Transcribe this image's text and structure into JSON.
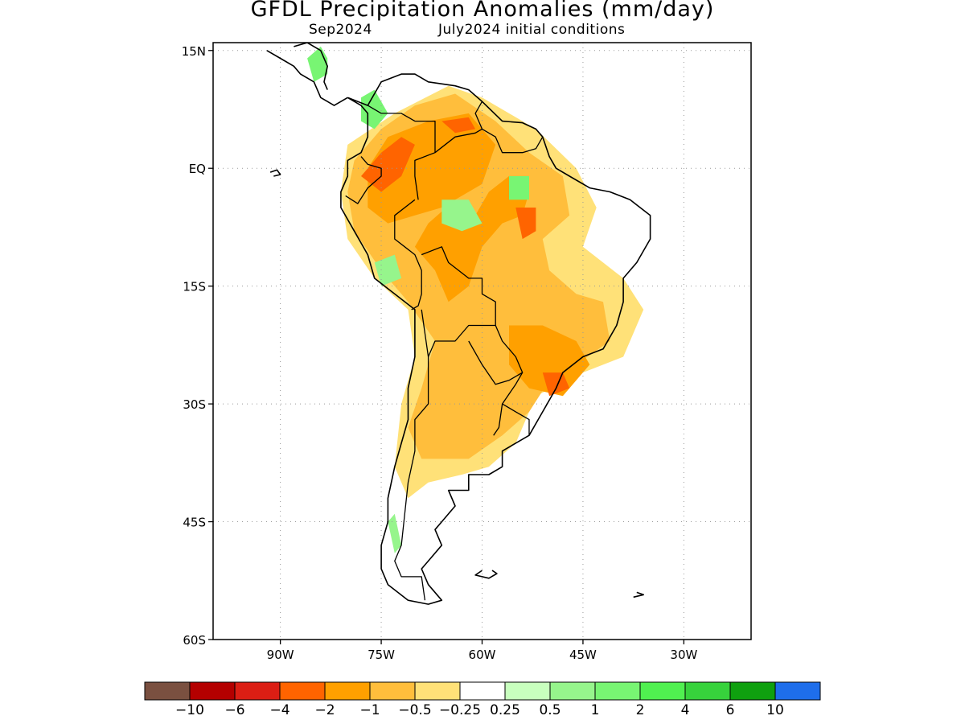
{
  "title": "GFDL Precipitation Anomalies (mm/day)",
  "subtitle_left": "Sep2024",
  "subtitle_right": "July2024 initial conditions",
  "lat_ticks": [
    {
      "label": "15N",
      "value": 15
    },
    {
      "label": "EQ",
      "value": 0
    },
    {
      "label": "15S",
      "value": -15
    },
    {
      "label": "30S",
      "value": -30
    },
    {
      "label": "45S",
      "value": -45
    },
    {
      "label": "60S",
      "value": -60
    }
  ],
  "lon_ticks": [
    {
      "label": "90W",
      "value": -90
    },
    {
      "label": "75W",
      "value": -75
    },
    {
      "label": "60W",
      "value": -60
    },
    {
      "label": "45W",
      "value": -45
    },
    {
      "label": "30W",
      "value": -30
    }
  ],
  "map_extent": {
    "lon_min": -100,
    "lon_max": -20,
    "lat_min": -60,
    "lat_max": 16
  },
  "colorbar": {
    "colors": [
      "#7a5040",
      "#b40000",
      "#dc1e14",
      "#ff6400",
      "#ffa000",
      "#ffbe3c",
      "#ffe178",
      "#ffffff",
      "#c8ffbe",
      "#96f58c",
      "#78f573",
      "#50f050",
      "#37d23c",
      "#0fa00f",
      "#1e6eeb"
    ],
    "labels": [
      "−10",
      "−6",
      "−4",
      "−2",
      "−1",
      "−0.5",
      "−0.25",
      "0.25",
      "0.5",
      "1",
      "2",
      "4",
      "6",
      "10"
    ]
  },
  "anomaly_regions": [
    {
      "level": "-0.25",
      "color": "#ffe178",
      "points": [
        [
          -80,
          3
        ],
        [
          -73,
          7
        ],
        [
          -65,
          10.5
        ],
        [
          -60,
          9
        ],
        [
          -52,
          5
        ],
        [
          -46,
          0
        ],
        [
          -43,
          -5
        ],
        [
          -45,
          -10
        ],
        [
          -39,
          -14
        ],
        [
          -36,
          -18
        ],
        [
          -39,
          -24
        ],
        [
          -45,
          -26
        ],
        [
          -52,
          -29
        ],
        [
          -55,
          -35
        ],
        [
          -59,
          -38
        ],
        [
          -63,
          -39
        ],
        [
          -68,
          -40
        ],
        [
          -71,
          -42
        ],
        [
          -73,
          -38
        ],
        [
          -72,
          -30
        ],
        [
          -70,
          -24
        ],
        [
          -71,
          -18
        ],
        [
          -76,
          -14
        ],
        [
          -80,
          -9
        ],
        [
          -81,
          -3
        ]
      ]
    },
    {
      "level": "-0.5",
      "color": "#ffbe3c",
      "points": [
        [
          -79,
          1
        ],
        [
          -75,
          5
        ],
        [
          -70,
          8
        ],
        [
          -64,
          9.5
        ],
        [
          -58,
          6
        ],
        [
          -53,
          2
        ],
        [
          -48,
          -1
        ],
        [
          -47,
          -6
        ],
        [
          -51,
          -9
        ],
        [
          -50,
          -13
        ],
        [
          -46,
          -16
        ],
        [
          -42,
          -17
        ],
        [
          -41,
          -22
        ],
        [
          -46,
          -25
        ],
        [
          -50,
          -27
        ],
        [
          -53,
          -31
        ],
        [
          -57,
          -34
        ],
        [
          -62,
          -37
        ],
        [
          -69,
          -37
        ],
        [
          -71,
          -33
        ],
        [
          -69,
          -28
        ],
        [
          -67,
          -22
        ],
        [
          -71,
          -17
        ],
        [
          -75,
          -13
        ],
        [
          -79,
          -8
        ],
        [
          -80,
          -3
        ]
      ]
    },
    {
      "level": "-1",
      "color": "#ffa000",
      "points": [
        [
          -77,
          0
        ],
        [
          -74,
          4
        ],
        [
          -68,
          6
        ],
        [
          -62,
          7
        ],
        [
          -58,
          3
        ],
        [
          -60,
          -2
        ],
        [
          -64,
          -4
        ],
        [
          -68,
          -7
        ],
        [
          -70,
          -10
        ],
        [
          -67,
          -13
        ],
        [
          -65,
          -17
        ],
        [
          -62,
          -15
        ],
        [
          -60,
          -10
        ],
        [
          -57,
          -7
        ],
        [
          -54,
          -6
        ],
        [
          -53,
          -3
        ],
        [
          -56,
          -1
        ],
        [
          -59,
          -3
        ],
        [
          -61,
          -6
        ],
        [
          -66,
          -5
        ],
        [
          -70,
          -6
        ],
        [
          -74,
          -7
        ],
        [
          -77,
          -5
        ]
      ]
    },
    {
      "level": "-1",
      "color": "#ffa000",
      "points": [
        [
          -56,
          -20
        ],
        [
          -51,
          -20
        ],
        [
          -46,
          -22
        ],
        [
          -44,
          -25
        ],
        [
          -48,
          -29
        ],
        [
          -53,
          -28
        ],
        [
          -56,
          -25
        ]
      ]
    },
    {
      "level": "-2",
      "color": "#ff6400",
      "points": [
        [
          -78,
          -1
        ],
        [
          -75,
          2
        ],
        [
          -72,
          4
        ],
        [
          -70,
          3
        ],
        [
          -72,
          -1
        ],
        [
          -75,
          -3
        ]
      ]
    },
    {
      "level": "-2",
      "color": "#ff6400",
      "points": [
        [
          -55,
          -5
        ],
        [
          -52,
          -5
        ],
        [
          -52,
          -8
        ],
        [
          -54,
          -9
        ]
      ]
    },
    {
      "level": "-2",
      "color": "#ff6400",
      "points": [
        [
          -51,
          -26
        ],
        [
          -48,
          -26
        ],
        [
          -47,
          -28
        ],
        [
          -50,
          -29
        ]
      ]
    },
    {
      "level": "-2",
      "color": "#ff6400",
      "points": [
        [
          -66,
          6
        ],
        [
          -62,
          6.5
        ],
        [
          -61,
          5
        ],
        [
          -64,
          4.5
        ]
      ]
    },
    {
      "level": "1",
      "color": "#78f573",
      "points": [
        [
          -86,
          14
        ],
        [
          -84,
          15.5
        ],
        [
          -83,
          14
        ],
        [
          -83,
          12
        ],
        [
          -85,
          11
        ]
      ]
    },
    {
      "level": "1",
      "color": "#78f573",
      "points": [
        [
          -78,
          9
        ],
        [
          -76,
          10
        ],
        [
          -74,
          7
        ],
        [
          -76,
          5
        ],
        [
          -78,
          6
        ]
      ]
    },
    {
      "level": "1",
      "color": "#78f573",
      "points": [
        [
          -56,
          -1
        ],
        [
          -53,
          -1
        ],
        [
          -53,
          -4
        ],
        [
          -56,
          -4
        ]
      ]
    },
    {
      "level": "0.5",
      "color": "#96f58c",
      "points": [
        [
          -66,
          -4
        ],
        [
          -62,
          -4
        ],
        [
          -60,
          -7
        ],
        [
          -63,
          -8
        ],
        [
          -66,
          -7
        ]
      ]
    },
    {
      "level": "0.5",
      "color": "#96f58c",
      "points": [
        [
          -76,
          -12
        ],
        [
          -73,
          -11
        ],
        [
          -72,
          -14
        ],
        [
          -75,
          -15
        ]
      ]
    },
    {
      "level": "0.5",
      "color": "#96f58c",
      "points": [
        [
          -74,
          -45
        ],
        [
          -73,
          -44
        ],
        [
          -72,
          -48
        ],
        [
          -73,
          -49
        ]
      ]
    }
  ],
  "land_outlines": [
    [
      [
        -80,
        9
      ],
      [
        -77,
        8
      ],
      [
        -75,
        11
      ],
      [
        -72,
        12
      ],
      [
        -70,
        12
      ],
      [
        -68,
        11
      ],
      [
        -64,
        10.5
      ],
      [
        -62,
        10
      ],
      [
        -60,
        8.5
      ],
      [
        -57,
        6
      ],
      [
        -54,
        5.8
      ],
      [
        -52,
        5
      ],
      [
        -51,
        4
      ],
      [
        -50,
        1.5
      ],
      [
        -49,
        0
      ],
      [
        -47,
        -1
      ],
      [
        -44,
        -2.5
      ],
      [
        -41,
        -3
      ],
      [
        -38,
        -4
      ],
      [
        -35,
        -6
      ],
      [
        -35,
        -9
      ],
      [
        -37,
        -12
      ],
      [
        -39,
        -14
      ],
      [
        -39,
        -17
      ],
      [
        -40,
        -20
      ],
      [
        -42,
        -23
      ],
      [
        -45,
        -24
      ],
      [
        -48,
        -26
      ],
      [
        -49,
        -28
      ],
      [
        -51,
        -31
      ],
      [
        -53,
        -34
      ],
      [
        -55,
        -35
      ],
      [
        -57,
        -36
      ],
      [
        -57,
        -38
      ],
      [
        -59,
        -39
      ],
      [
        -62,
        -39
      ],
      [
        -62,
        -41
      ],
      [
        -65,
        -41
      ],
      [
        -64,
        -43
      ],
      [
        -66,
        -45
      ],
      [
        -67,
        -46
      ],
      [
        -66,
        -48
      ],
      [
        -68,
        -50
      ],
      [
        -69,
        -51
      ],
      [
        -68,
        -53
      ],
      [
        -66,
        -55
      ],
      [
        -68,
        -55.5
      ],
      [
        -71,
        -55
      ],
      [
        -74,
        -53
      ],
      [
        -75,
        -51
      ],
      [
        -75,
        -48
      ],
      [
        -74,
        -45
      ],
      [
        -74,
        -42
      ],
      [
        -73,
        -38
      ],
      [
        -72,
        -35
      ],
      [
        -71,
        -32
      ],
      [
        -71,
        -28
      ],
      [
        -70,
        -24
      ],
      [
        -70,
        -18
      ],
      [
        -73,
        -16
      ],
      [
        -76,
        -14
      ],
      [
        -77,
        -11
      ],
      [
        -79,
        -8
      ],
      [
        -81,
        -5
      ],
      [
        -81,
        -3
      ],
      [
        -80,
        -1
      ],
      [
        -80,
        1
      ],
      [
        -78,
        2
      ],
      [
        -77,
        4
      ],
      [
        -77,
        7
      ],
      [
        -78,
        8
      ],
      [
        -80,
        9
      ]
    ],
    [
      [
        -92,
        15
      ],
      [
        -90,
        14
      ],
      [
        -88,
        13
      ],
      [
        -87,
        12
      ],
      [
        -85,
        11
      ],
      [
        -84,
        9
      ],
      [
        -83,
        8.5
      ],
      [
        -82,
        8
      ],
      [
        -80,
        9
      ]
    ],
    [
      [
        -88,
        15.5
      ],
      [
        -86,
        16
      ],
      [
        -84,
        15
      ],
      [
        -83,
        13
      ],
      [
        -83.5,
        11
      ],
      [
        -83,
        10
      ]
    ],
    [
      [
        -91.5,
        -0.5
      ],
      [
        -90.5,
        -0.2
      ],
      [
        -90,
        -0.8
      ],
      [
        -91,
        -1
      ]
    ],
    [
      [
        -58.5,
        -51.2
      ],
      [
        -57.8,
        -51.6
      ],
      [
        -59,
        -52.2
      ],
      [
        -61,
        -51.8
      ],
      [
        -60,
        -51.2
      ]
    ],
    [
      [
        -37,
        -54
      ],
      [
        -36,
        -54.3
      ],
      [
        -37.5,
        -54.6
      ]
    ]
  ],
  "country_borders": [
    [
      [
        -77,
        8
      ],
      [
        -75,
        7
      ],
      [
        -72,
        7
      ],
      [
        -70,
        6
      ],
      [
        -67,
        6
      ],
      [
        -67,
        2
      ],
      [
        -70,
        1
      ],
      [
        -70,
        -1
      ],
      [
        -69.5,
        -4
      ]
    ],
    [
      [
        -78,
        1.5
      ],
      [
        -77,
        0.5
      ],
      [
        -75,
        0
      ],
      [
        -75,
        -1
      ],
      [
        -77,
        -2.5
      ],
      [
        -78.5,
        -4.5
      ],
      [
        -80.3,
        -3.5
      ]
    ],
    [
      [
        -70,
        -4
      ],
      [
        -73,
        -6
      ],
      [
        -73,
        -9
      ],
      [
        -70,
        -11
      ],
      [
        -69,
        -13
      ],
      [
        -69,
        -16
      ],
      [
        -69.5,
        -17.5
      ],
      [
        -70.5,
        -18
      ]
    ],
    [
      [
        -67,
        2
      ],
      [
        -64,
        4
      ],
      [
        -61,
        4.5
      ],
      [
        -60,
        5
      ],
      [
        -61,
        7
      ],
      [
        -60,
        8.5
      ]
    ],
    [
      [
        -60,
        5
      ],
      [
        -58,
        4
      ],
      [
        -57,
        2
      ],
      [
        -56,
        2
      ],
      [
        -54,
        2
      ],
      [
        -52,
        2.5
      ],
      [
        -51,
        4
      ]
    ],
    [
      [
        -69,
        -11
      ],
      [
        -66,
        -10
      ],
      [
        -65,
        -12
      ],
      [
        -62,
        -14
      ],
      [
        -60,
        -14
      ],
      [
        -60,
        -16
      ],
      [
        -58,
        -17
      ],
      [
        -58,
        -20
      ],
      [
        -62,
        -20
      ],
      [
        -64,
        -22
      ],
      [
        -67,
        -22
      ],
      [
        -68,
        -24
      ],
      [
        -69,
        -18
      ]
    ],
    [
      [
        -58,
        -20
      ],
      [
        -57,
        -22
      ],
      [
        -55,
        -24
      ],
      [
        -54,
        -26
      ],
      [
        -56,
        -27
      ],
      [
        -58,
        -27.5
      ],
      [
        -60,
        -25
      ],
      [
        -62,
        -22
      ]
    ],
    [
      [
        -54,
        -26
      ],
      [
        -55,
        -27.5
      ],
      [
        -57,
        -30
      ],
      [
        -57.5,
        -33
      ],
      [
        -58.3,
        -34
      ]
    ],
    [
      [
        -57,
        -30
      ],
      [
        -55,
        -31
      ],
      [
        -53,
        -32
      ],
      [
        -53,
        -34
      ]
    ],
    [
      [
        -68,
        -24
      ],
      [
        -68,
        -30
      ],
      [
        -70,
        -32
      ],
      [
        -70,
        -36
      ],
      [
        -71,
        -40
      ],
      [
        -71.5,
        -44
      ],
      [
        -72,
        -48
      ],
      [
        -73,
        -50
      ],
      [
        -72,
        -52
      ],
      [
        -69,
        -52
      ],
      [
        -68.5,
        -55
      ]
    ]
  ]
}
